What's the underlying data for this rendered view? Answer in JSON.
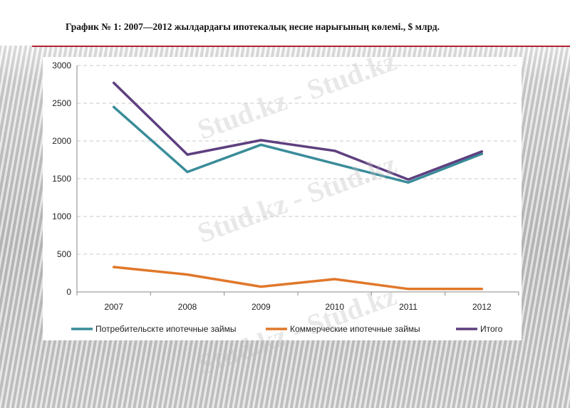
{
  "header": {
    "title": "График № 1: 2007—2012 жылдардағы ипотекалық несие нарығының көлемі., $ млрд."
  },
  "watermark": {
    "text": "Stud.kz - Stud.kz"
  },
  "colors": {
    "accent_rule": "#b22234",
    "series_consumer": "#3a8c9a",
    "series_commercial": "#e0782a",
    "series_total": "#5e3f7f",
    "grid": "#c8c8c8"
  },
  "chart_data": {
    "type": "line",
    "title": "",
    "xlabel": "",
    "ylabel": "",
    "x": [
      "2007",
      "2008",
      "2009",
      "2010",
      "2011",
      "2012"
    ],
    "ylim": [
      0,
      3000
    ],
    "yticks": [
      0,
      500,
      1000,
      1500,
      2000,
      2500,
      3000
    ],
    "ytick_labels": [
      "0",
      "500",
      "1000",
      "1500",
      "2000",
      "2500",
      "3000"
    ],
    "grid": true,
    "legend_position": "bottom",
    "series": [
      {
        "name": "Потребительскте ипотечные займы",
        "color": "#3a8c9a",
        "values": [
          2450,
          1590,
          1950,
          1700,
          1450,
          1830
        ]
      },
      {
        "name": "Коммерческие ипотечные займы",
        "color": "#e0782a",
        "values": [
          330,
          230,
          70,
          170,
          40,
          40
        ]
      },
      {
        "name": "Итого",
        "color": "#5e3f7f",
        "values": [
          2770,
          1820,
          2010,
          1870,
          1490,
          1860
        ]
      }
    ]
  }
}
